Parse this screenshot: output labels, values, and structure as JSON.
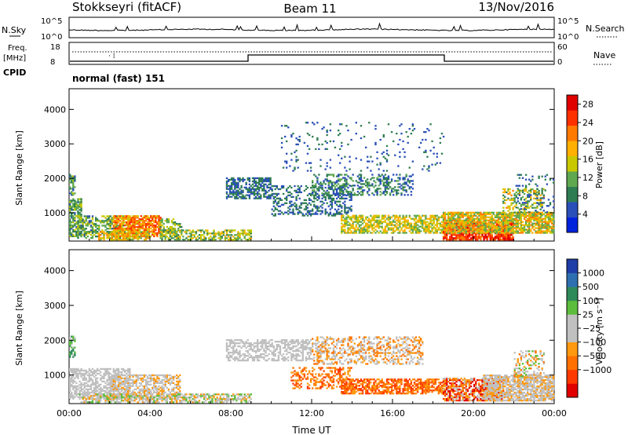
{
  "header": {
    "station": "Stokkseyri (fitACF)",
    "beam": "Beam 11",
    "date": "13/Nov/2016"
  },
  "top_panel": {
    "nsky_label": "N.Sky",
    "nsky_ticks": [
      "10^5",
      "10^0"
    ],
    "nsearch_label": "N.Search",
    "nsearch_ticks": [
      "10^5",
      "10^0"
    ],
    "freq_label": "Freq.",
    "freq_unit": "[MHz]",
    "freq_ticks": [
      "18",
      "8"
    ],
    "nave_label": "Nave",
    "nave_ticks": [
      "60",
      "0"
    ],
    "cpid_label": "CPID",
    "cpid_value": "normal (fast) 151"
  },
  "colors": {
    "power": [
      "#0022dd",
      "#2a4fb8",
      "#2e7d52",
      "#5fa84f",
      "#c8c800",
      "#ffb000",
      "#ff7a00",
      "#ff3000",
      "#e00000"
    ],
    "velocity": [
      "#1f3da6",
      "#2e6fb0",
      "#2f8a5a",
      "#5cbd3c",
      "#c0c0c0",
      "#c0c0c0",
      "#ff9a10",
      "#ff7000",
      "#ff3a00",
      "#e00000"
    ]
  },
  "chart_data": [
    {
      "type": "heatmap",
      "name": "power",
      "ylabel": "Slant Range [km]",
      "x_ticks": [
        "00:00",
        "04:00",
        "08:00",
        "12:00",
        "16:00",
        "20:00",
        "00:00"
      ],
      "x_range_hours": [
        0,
        24
      ],
      "y_ticks": [
        1000,
        2000,
        3000,
        4000
      ],
      "ylim": [
        180,
        4600
      ],
      "colorbar": {
        "label": "Power [dB]",
        "range": [
          0,
          30
        ],
        "ticks": [
          "4",
          "8",
          "12",
          "16",
          "20",
          "24",
          "28"
        ]
      },
      "regions": [
        {
          "t": [
            0.0,
            0.3
          ],
          "r": [
            1500,
            2100
          ],
          "v": [
            4,
            14
          ],
          "d": 0.6
        },
        {
          "t": [
            0.0,
            0.6
          ],
          "r": [
            300,
            1400
          ],
          "v": [
            6,
            16
          ],
          "d": 0.7
        },
        {
          "t": [
            0.4,
            2.8
          ],
          "r": [
            250,
            900
          ],
          "v": [
            6,
            16
          ],
          "d": 0.55
        },
        {
          "t": [
            2.2,
            4.5
          ],
          "r": [
            300,
            900
          ],
          "v": [
            14,
            26
          ],
          "d": 0.8
        },
        {
          "t": [
            4.5,
            5.6
          ],
          "r": [
            300,
            800
          ],
          "v": [
            8,
            16
          ],
          "d": 0.5
        },
        {
          "t": [
            1.5,
            4.0
          ],
          "r": [
            200,
            450
          ],
          "v": [
            12,
            22
          ],
          "d": 0.6
        },
        {
          "t": [
            4.5,
            9.0
          ],
          "r": [
            200,
            500
          ],
          "v": [
            8,
            18
          ],
          "d": 0.55
        },
        {
          "t": [
            7.8,
            10.0
          ],
          "r": [
            1400,
            2000
          ],
          "v": [
            4,
            10
          ],
          "d": 0.6
        },
        {
          "t": [
            10.0,
            14.0
          ],
          "r": [
            900,
            1800
          ],
          "v": [
            4,
            10
          ],
          "d": 0.35
        },
        {
          "t": [
            12.0,
            17.0
          ],
          "r": [
            1500,
            2100
          ],
          "v": [
            4,
            12
          ],
          "d": 0.35
        },
        {
          "t": [
            13.5,
            18.5
          ],
          "r": [
            400,
            900
          ],
          "v": [
            10,
            20
          ],
          "d": 0.65
        },
        {
          "t": [
            10.5,
            18.5
          ],
          "r": [
            2200,
            3600
          ],
          "v": [
            4,
            8
          ],
          "d": 0.05
        },
        {
          "t": [
            18.5,
            22.0
          ],
          "r": [
            200,
            700
          ],
          "v": [
            20,
            30
          ],
          "d": 0.85
        },
        {
          "t": [
            18.5,
            24.0
          ],
          "r": [
            400,
            1000
          ],
          "v": [
            10,
            22
          ],
          "d": 0.8
        },
        {
          "t": [
            21.5,
            23.5
          ],
          "r": [
            900,
            1700
          ],
          "v": [
            8,
            22
          ],
          "d": 0.4
        },
        {
          "t": [
            22.0,
            24.0
          ],
          "r": [
            1000,
            2100
          ],
          "v": [
            4,
            10
          ],
          "d": 0.15
        }
      ]
    },
    {
      "type": "heatmap",
      "name": "velocity",
      "ylabel": "Slant Range [km]",
      "xlabel": "Time UT",
      "x_ticks": [
        "00:00",
        "04:00",
        "08:00",
        "12:00",
        "16:00",
        "20:00",
        "00:00"
      ],
      "x_range_hours": [
        0,
        24
      ],
      "y_ticks": [
        1000,
        2000,
        3000,
        4000
      ],
      "ylim": [
        180,
        4600
      ],
      "colorbar": {
        "label": "Velocity [m s⁻¹]",
        "ticks": [
          "1000",
          "500",
          "100",
          "25",
          "−25",
          "−100",
          "−500",
          "−1000"
        ]
      },
      "regions": [
        {
          "t": [
            0.0,
            0.3
          ],
          "r": [
            1500,
            2100
          ],
          "c": [
            2,
            4
          ],
          "d": 0.6
        },
        {
          "t": [
            0.0,
            3.0
          ],
          "r": [
            300,
            1200
          ],
          "c": [
            4,
            5
          ],
          "d": 0.6
        },
        {
          "t": [
            2.0,
            5.5
          ],
          "r": [
            300,
            1000
          ],
          "c": [
            4,
            6
          ],
          "d": 0.6
        },
        {
          "t": [
            0.5,
            9.0
          ],
          "r": [
            200,
            450
          ],
          "c": [
            3,
            6
          ],
          "d": 0.6
        },
        {
          "t": [
            7.8,
            12.0
          ],
          "r": [
            1400,
            2000
          ],
          "c": [
            4,
            5
          ],
          "d": 0.55
        },
        {
          "t": [
            12.0,
            17.5
          ],
          "r": [
            1300,
            2100
          ],
          "c": [
            4,
            7
          ],
          "d": 0.4
        },
        {
          "t": [
            11.0,
            14.0
          ],
          "r": [
            600,
            1200
          ],
          "c": [
            6,
            8
          ],
          "d": 0.4
        },
        {
          "t": [
            13.5,
            18.5
          ],
          "r": [
            450,
            900
          ],
          "c": [
            6,
            8
          ],
          "d": 0.7
        },
        {
          "t": [
            18.5,
            21.5
          ],
          "r": [
            250,
            900
          ],
          "c": [
            5,
            9
          ],
          "d": 0.75
        },
        {
          "t": [
            20.5,
            24.0
          ],
          "r": [
            250,
            1000
          ],
          "c": [
            4,
            6
          ],
          "d": 0.8
        },
        {
          "t": [
            22.0,
            23.5
          ],
          "r": [
            900,
            1700
          ],
          "c": [
            3,
            7
          ],
          "d": 0.3
        }
      ]
    }
  ]
}
